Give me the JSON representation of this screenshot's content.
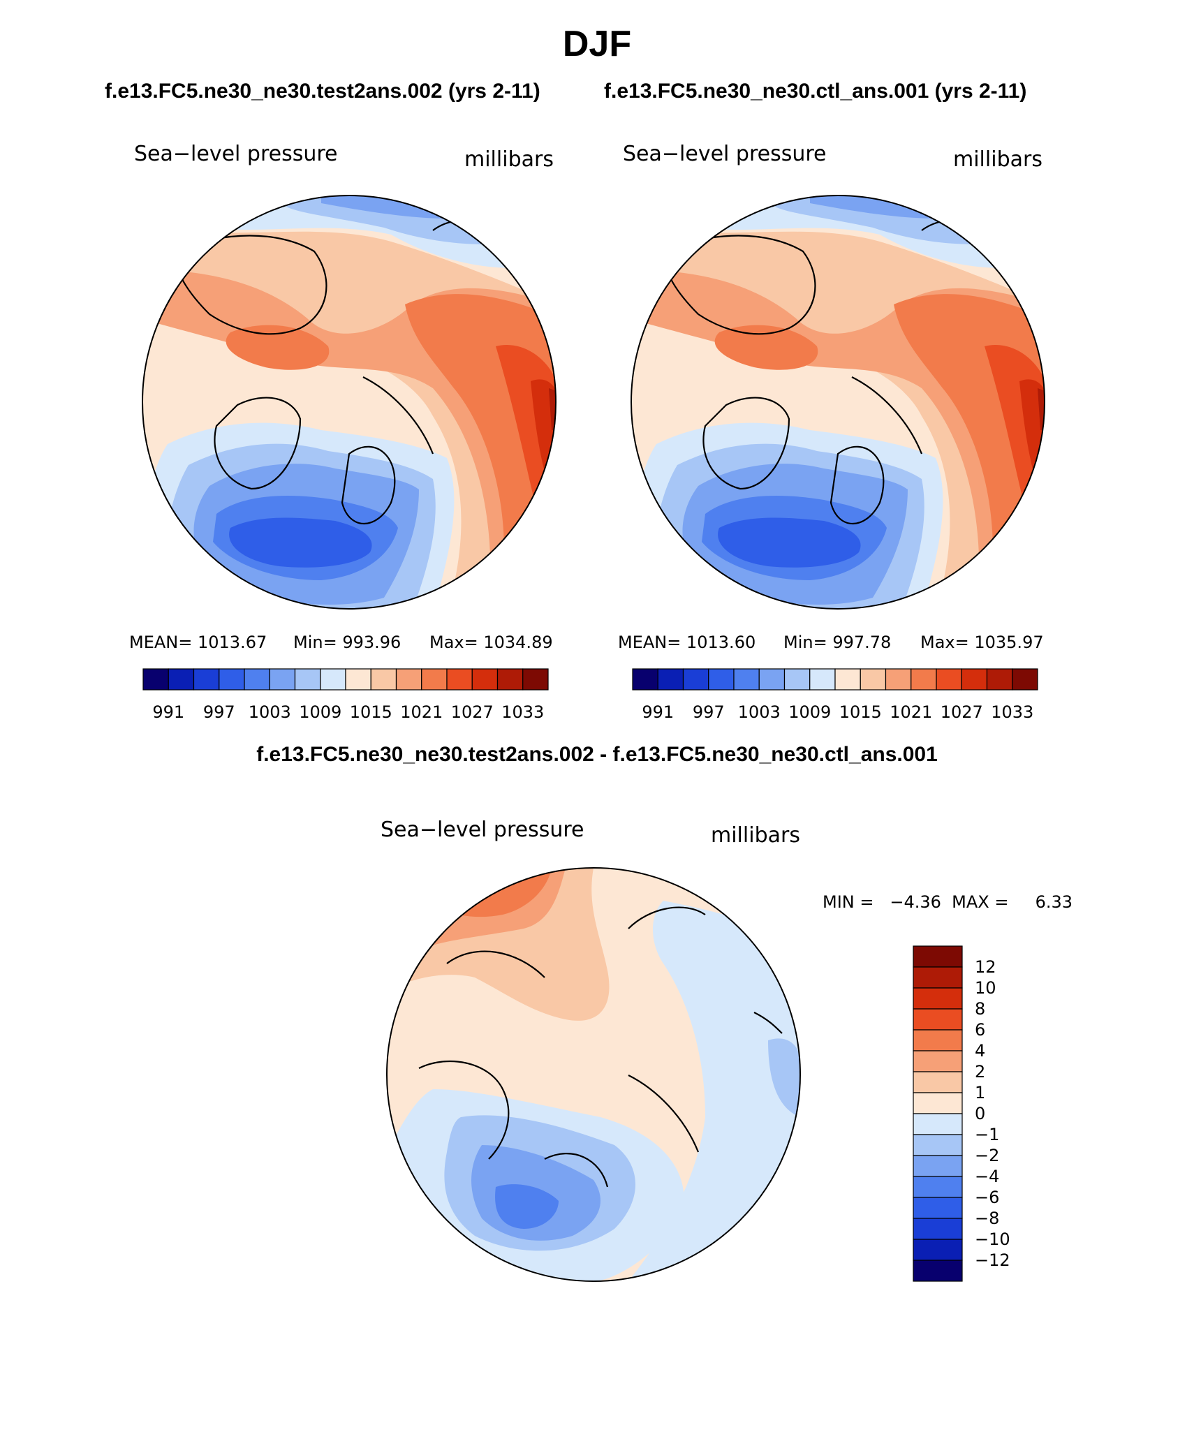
{
  "chart_data": {
    "type": "polar_contour_map",
    "title": "DJF",
    "panels": [
      {
        "id": "test",
        "case": "f.e13.FC5.ne30_ne30.test2ans.002 (yrs 2-11)",
        "variable": "Sea−level pressure",
        "units": "millibars",
        "stats": {
          "mean": 1013.67,
          "min": 993.96,
          "max": 1034.89
        },
        "stats_labels": {
          "mean": "MEAN=  1013.67",
          "min": "Min=  993.96",
          "max": "Max=  1034.89"
        }
      },
      {
        "id": "ctl",
        "case": "f.e13.FC5.ne30_ne30.ctl_ans.001 (yrs 2-11)",
        "variable": "Sea−level pressure",
        "units": "millibars",
        "stats": {
          "mean": 1013.6,
          "min": 997.78,
          "max": 1035.97
        },
        "stats_labels": {
          "mean": "MEAN=  1013.60",
          "min": "Min=  997.78",
          "max": "Max=  1035.97"
        }
      },
      {
        "id": "diff",
        "case": "f.e13.FC5.ne30_ne30.test2ans.002 - f.e13.FC5.ne30_ne30.ctl_ans.001",
        "variable": "Sea−level pressure",
        "units": "millibars",
        "stats": {
          "min": -4.36,
          "max": 6.33
        },
        "stats_label": "MIN =   −4.36  MAX =     6.33"
      }
    ],
    "abs_colorbar": {
      "levels": [
        991,
        994,
        997,
        1000,
        1003,
        1006,
        1009,
        1012,
        1015,
        1018,
        1021,
        1024,
        1027,
        1030,
        1033
      ],
      "tick_labels": [
        "991",
        "997",
        "1003",
        "1009",
        "1015",
        "1021",
        "1027",
        "1033"
      ],
      "colors": [
        "#08006e",
        "#0a1fb4",
        "#1a3ed6",
        "#2f5ee8",
        "#4f80ef",
        "#7aa3f2",
        "#a7c6f6",
        "#d6e8fb",
        "#fde7d4",
        "#f9c8a6",
        "#f6a077",
        "#f27b4b",
        "#ea4d22",
        "#d42e0c",
        "#ae1b06",
        "#7d0a03"
      ]
    },
    "diff_colorbar": {
      "levels": [
        -12,
        -10,
        -8,
        -6,
        -4,
        -2,
        -1,
        0,
        1,
        2,
        4,
        6,
        8,
        10,
        12
      ],
      "tick_labels": [
        "12",
        "10",
        "8",
        "6",
        "4",
        "2",
        "1",
        "0",
        "−1",
        "−2",
        "−4",
        "−6",
        "−8",
        "−10",
        "−12"
      ],
      "colors_top_to_bottom": [
        "#7d0a03",
        "#ae1b06",
        "#d42e0c",
        "#ea4d22",
        "#f27b4b",
        "#f6a077",
        "#f9c8a6",
        "#fde7d4",
        "#d6e8fb",
        "#a7c6f6",
        "#7aa3f2",
        "#4f80ef",
        "#2f5ee8",
        "#1a3ed6",
        "#0a1fb4",
        "#08006e"
      ]
    }
  }
}
